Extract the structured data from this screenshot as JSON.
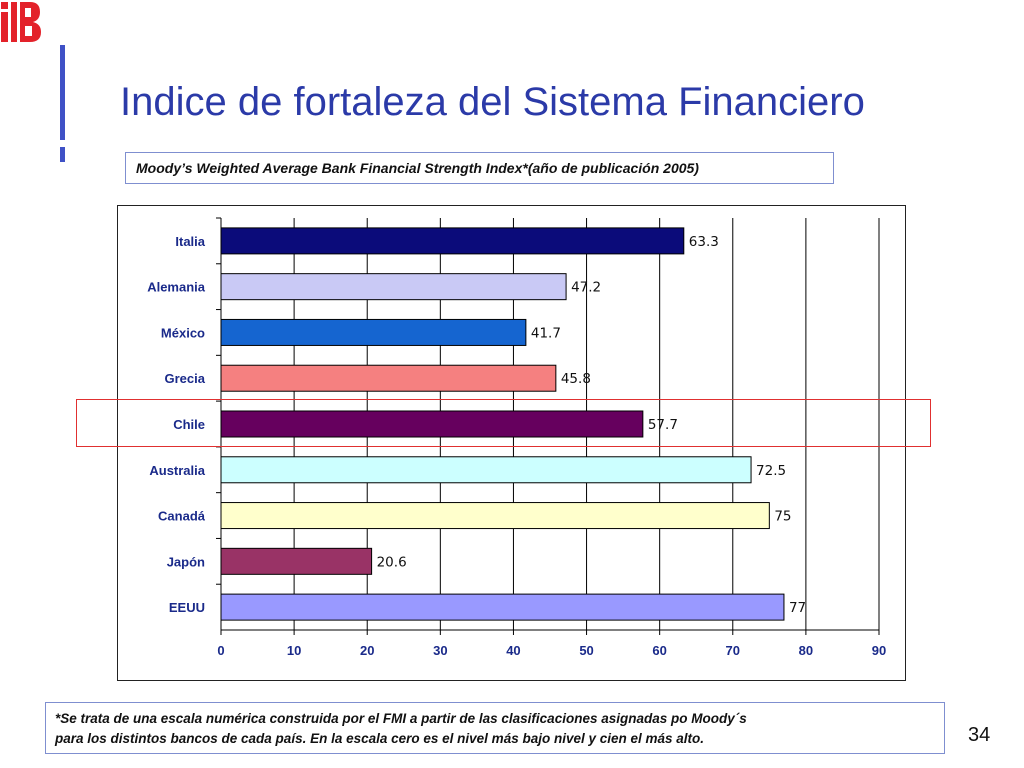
{
  "slide": {
    "title": "Indice de fortaleza del Sistema Financiero",
    "subtitle": "Moody’s Weighted Average Bank Financial Strength Index*(año de publicación 2005)",
    "note_line1": "*Se trata de una escala numérica construida por el FMI a partir de las clasificaciones asignadas po Moody´s",
    "note_line2": "para los distintos bancos de cada país. En la escala cero es el nivel más bajo nivel y cien el más alto.",
    "page_number": "34"
  },
  "colors": {
    "title": "#2b3aa8",
    "accent": "#3f51c6",
    "logo": "#e3222a",
    "highlight": "#e03030"
  },
  "chart_data": {
    "type": "bar",
    "orientation": "horizontal",
    "categories": [
      "Italia",
      "Alemania",
      "México",
      "Grecia",
      "Chile",
      "Australia",
      "Canadá",
      "Japón",
      "EEUU"
    ],
    "values": [
      63.3,
      47.2,
      41.7,
      45.8,
      57.7,
      72.5,
      75,
      20.6,
      77
    ],
    "value_labels": [
      "63.3",
      "47.2",
      "41.7",
      "45.8",
      "57.7",
      "72.5",
      "75",
      "20.6",
      "77"
    ],
    "bar_colors": [
      "#0b0b7a",
      "#c9c9f5",
      "#1565d0",
      "#f58080",
      "#66005e",
      "#ccffff",
      "#ffffcc",
      "#993366",
      "#9999ff"
    ],
    "xlim": [
      0,
      90
    ],
    "xticks": [
      0,
      10,
      20,
      30,
      40,
      50,
      60,
      70,
      80,
      90
    ],
    "grid": true,
    "highlighted_category": "Chile"
  }
}
